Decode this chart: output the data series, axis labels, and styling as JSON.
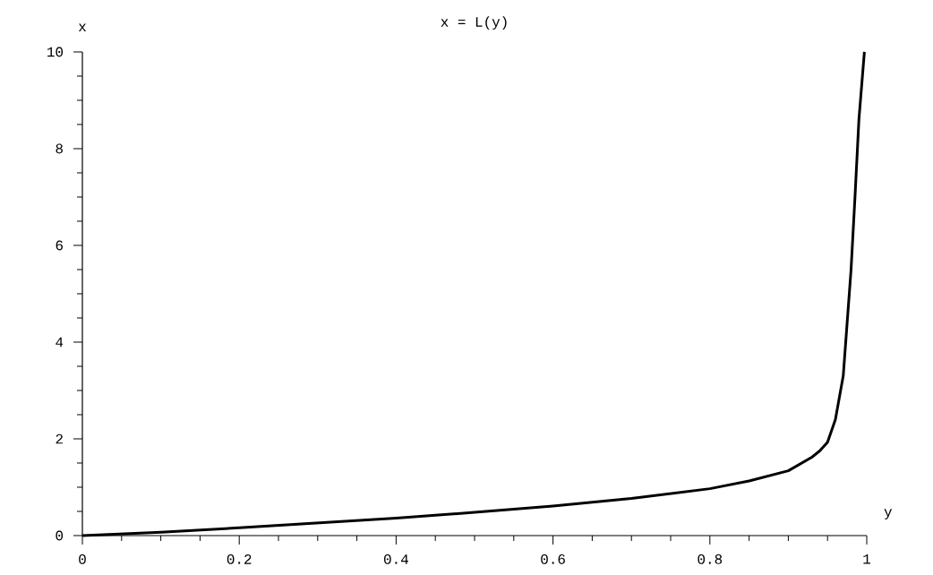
{
  "chart_data": {
    "type": "line",
    "title": "x = L(y)",
    "xlabel": "y",
    "ylabel": "x",
    "x": [
      0,
      0.1,
      0.2,
      0.4,
      0.5,
      0.6,
      0.7,
      0.8,
      0.85,
      0.9,
      0.93,
      0.94,
      0.95,
      0.96,
      0.97,
      0.975,
      0.98,
      0.985,
      0.99,
      0.997
    ],
    "series": [
      {
        "color": "#000000",
        "values": [
          0,
          0.07,
          0.16,
          0.36,
          0.48,
          0.61,
          0.77,
          0.97,
          1.13,
          1.34,
          1.62,
          1.75,
          1.93,
          2.4,
          3.3,
          4.4,
          5.5,
          7,
          8.6,
          10
        ]
      }
    ],
    "xlim": [
      0,
      1
    ],
    "ylim": [
      0,
      10
    ],
    "xticks": [
      0,
      0.2,
      0.4,
      0.6,
      0.8,
      1
    ],
    "yticks": [
      0,
      2,
      4,
      6,
      8,
      10
    ],
    "grid": false,
    "marker": "none",
    "line_style": "solid"
  }
}
